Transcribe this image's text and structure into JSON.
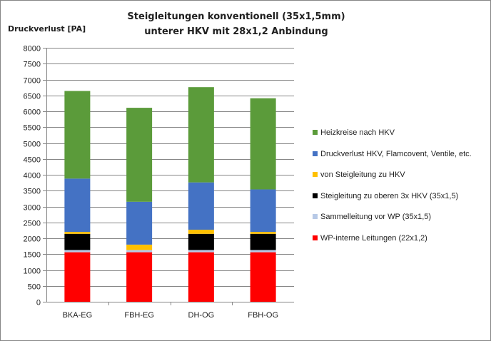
{
  "chart_data": {
    "type": "bar",
    "stacked": true,
    "title": [
      "Steigleitungen konventionell (35x1,5mm)",
      "unterer HKV mit 28x1,2 Anbindung"
    ],
    "ylabel": "Druckverlust  [PA]",
    "xlabel": "",
    "ylim": [
      0,
      8000
    ],
    "ytick_step": 500,
    "yticks": [
      "0",
      "500",
      "1000",
      "1500",
      "2000",
      "2500",
      "3000",
      "3500",
      "4000",
      "4500",
      "5000",
      "5500",
      "6000",
      "6500",
      "7000",
      "7500",
      "8000"
    ],
    "grid": true,
    "legend_position": "right",
    "categories": [
      "BKA-EG",
      "FBH-EG",
      "DH-OG",
      "FBH-OG"
    ],
    "series": [
      {
        "name": "WP-interne Leitungen (22x1,2)",
        "color": "#ff0000",
        "values": [
          1560,
          1560,
          1560,
          1560
        ]
      },
      {
        "name": "Sammelleitung vor WP (35x1,5)",
        "color": "#b7c9e6",
        "values": [
          70,
          70,
          70,
          70
        ]
      },
      {
        "name": "Steigleitung zu oberen 3x HKV (35x1,5)",
        "color": "#000000",
        "values": [
          510,
          0,
          510,
          510
        ]
      },
      {
        "name": "von Steigleitung zu HKV",
        "color": "#ffc000",
        "values": [
          60,
          170,
          130,
          60
        ]
      },
      {
        "name": "Druckverlust HKV, Flamcovent, Ventile, etc.",
        "color": "#4472c4",
        "values": [
          1680,
          1350,
          1490,
          1340
        ]
      },
      {
        "name": "Heizkreise nach HKV",
        "color": "#5b9b3a",
        "values": [
          2760,
          2960,
          3000,
          2870
        ]
      }
    ]
  }
}
